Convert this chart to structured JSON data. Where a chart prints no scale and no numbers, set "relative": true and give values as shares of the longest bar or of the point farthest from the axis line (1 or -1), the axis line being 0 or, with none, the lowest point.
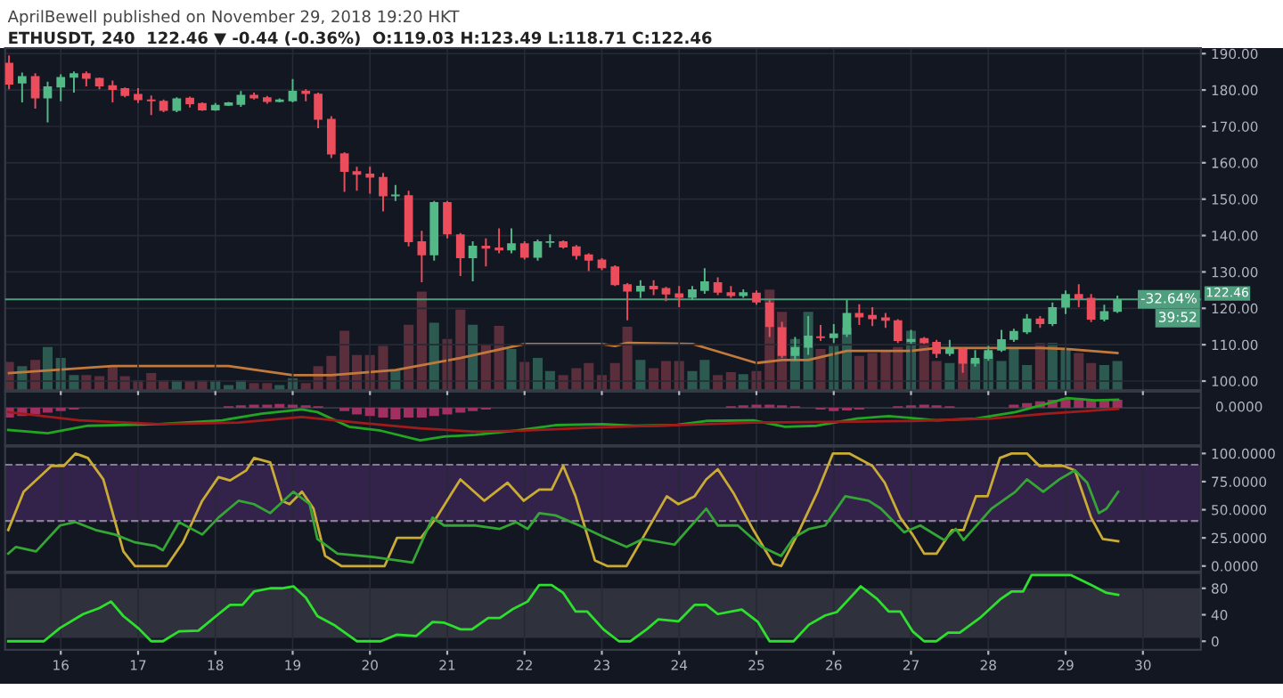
{
  "chart_data": [
    {
      "type": "candlestick",
      "subtitle": "AprilBewell published on November 29, 2018 19:20 HKT",
      "title": "ETHUSDT, 240  122.46 ▼ -0.44 (-0.36%)  O:119.03 H:123.49 L:118.71 C:122.46",
      "x": [
        15.33,
        15.5,
        15.67,
        15.83,
        16,
        16.17,
        16.33,
        16.5,
        16.67,
        16.83,
        17,
        17.17,
        17.33,
        17.5,
        17.67,
        17.83,
        18,
        18.17,
        18.33,
        18.5,
        18.67,
        18.83,
        19,
        19.17,
        19.33,
        19.5,
        19.67,
        19.83,
        20,
        20.17,
        20.33,
        20.5,
        20.67,
        20.83,
        21,
        21.17,
        21.33,
        21.5,
        21.67,
        21.83,
        22,
        22.17,
        22.33,
        22.5,
        22.67,
        22.83,
        23,
        23.17,
        23.33,
        23.5,
        23.67,
        23.83,
        24,
        24.17,
        24.33,
        24.5,
        24.67,
        24.83,
        25,
        25.17,
        25.33,
        25.5,
        25.67,
        25.83,
        26,
        26.17,
        26.33,
        26.5,
        26.67,
        26.83,
        27,
        27.17,
        27.33,
        27.5,
        27.67,
        27.83,
        28,
        28.17,
        28.33,
        28.5,
        28.67,
        28.83,
        29,
        29.17,
        29.33,
        29.5,
        29.67
      ],
      "ohlc": [
        [
          187.5,
          189.5,
          180.2,
          181.5
        ],
        [
          181.8,
          184.8,
          176.6,
          183.8
        ],
        [
          183.8,
          184.6,
          174.9,
          177.7
        ],
        [
          177.7,
          182.3,
          171.1,
          181.0
        ],
        [
          180.7,
          184.3,
          176.9,
          183.6
        ],
        [
          183.4,
          185.1,
          179.3,
          184.6
        ],
        [
          184.6,
          185.1,
          181.0,
          183.1
        ],
        [
          183.3,
          183.4,
          180.2,
          181.0
        ],
        [
          181.3,
          182.6,
          176.6,
          180.0
        ],
        [
          180.5,
          180.7,
          178.0,
          178.4
        ],
        [
          178.9,
          180.5,
          176.4,
          177.2
        ],
        [
          177.4,
          178.5,
          173.1,
          176.9
        ],
        [
          177.0,
          177.4,
          173.9,
          174.3
        ],
        [
          174.3,
          178.0,
          173.9,
          177.7
        ],
        [
          177.9,
          178.2,
          175.2,
          176.1
        ],
        [
          176.4,
          176.6,
          174.3,
          174.4
        ],
        [
          174.4,
          176.4,
          174.3,
          175.9
        ],
        [
          175.7,
          176.7,
          175.6,
          176.6
        ],
        [
          175.9,
          179.7,
          175.4,
          178.7
        ],
        [
          178.7,
          179.3,
          177.4,
          177.7
        ],
        [
          178.0,
          178.4,
          176.2,
          176.7
        ],
        [
          176.7,
          177.7,
          176.6,
          177.4
        ],
        [
          176.9,
          183.0,
          176.6,
          179.8
        ],
        [
          179.8,
          180.2,
          176.9,
          178.9
        ],
        [
          179.0,
          179.3,
          169.5,
          171.8
        ],
        [
          172.1,
          172.8,
          161.3,
          162.3
        ],
        [
          162.6,
          162.9,
          152.0,
          157.5
        ],
        [
          157.7,
          158.9,
          152.3,
          156.7
        ],
        [
          157.0,
          158.9,
          151.5,
          155.9
        ],
        [
          156.1,
          157.2,
          146.6,
          150.8
        ],
        [
          150.8,
          153.9,
          149.5,
          151.3
        ],
        [
          151.1,
          152.3,
          137.0,
          138.2
        ],
        [
          138.4,
          141.3,
          127.2,
          134.6
        ],
        [
          134.6,
          149.5,
          133.1,
          149.2
        ],
        [
          149.2,
          149.5,
          139.2,
          140.3
        ],
        [
          140.3,
          140.7,
          128.9,
          133.8
        ],
        [
          133.8,
          138.4,
          127.4,
          137.2
        ],
        [
          137.2,
          139.2,
          131.5,
          136.4
        ],
        [
          136.7,
          142.0,
          135.1,
          135.9
        ],
        [
          135.9,
          142.0,
          135.1,
          137.9
        ],
        [
          137.9,
          138.4,
          133.4,
          133.9
        ],
        [
          133.9,
          138.9,
          133.1,
          138.4
        ],
        [
          138.0,
          140.3,
          136.7,
          138.4
        ],
        [
          138.4,
          138.7,
          136.4,
          136.7
        ],
        [
          137.0,
          137.4,
          133.4,
          134.4
        ],
        [
          134.8,
          135.1,
          130.2,
          133.1
        ],
        [
          133.4,
          133.8,
          130.5,
          131.0
        ],
        [
          131.5,
          131.8,
          126.1,
          126.4
        ],
        [
          126.6,
          126.9,
          116.7,
          124.6
        ],
        [
          124.6,
          127.7,
          122.8,
          126.2
        ],
        [
          126.2,
          127.7,
          123.6,
          125.2
        ],
        [
          125.6,
          125.9,
          122.0,
          123.8
        ],
        [
          124.1,
          126.1,
          120.3,
          122.9
        ],
        [
          122.9,
          126.1,
          122.3,
          125.2
        ],
        [
          124.8,
          131.0,
          124.0,
          127.4
        ],
        [
          127.2,
          128.5,
          123.6,
          124.3
        ],
        [
          124.4,
          126.1,
          122.9,
          123.4
        ],
        [
          123.4,
          125.2,
          122.9,
          124.4
        ],
        [
          124.3,
          124.9,
          121.0,
          121.6
        ],
        [
          121.6,
          122.3,
          112.1,
          114.9
        ],
        [
          114.8,
          116.3,
          106.4,
          106.9
        ],
        [
          106.9,
          112.1,
          105.6,
          109.3
        ],
        [
          109.2,
          117.9,
          107.2,
          112.5
        ],
        [
          112.3,
          115.4,
          111.0,
          111.8
        ],
        [
          111.8,
          115.7,
          110.5,
          113.1
        ],
        [
          112.8,
          122.3,
          112.1,
          118.7
        ],
        [
          118.7,
          121.1,
          115.4,
          117.5
        ],
        [
          118.2,
          120.3,
          115.1,
          117.0
        ],
        [
          117.5,
          118.7,
          114.6,
          116.6
        ],
        [
          116.7,
          117.0,
          110.5,
          111.0
        ],
        [
          110.8,
          114.1,
          110.2,
          111.6
        ],
        [
          111.8,
          112.1,
          110.2,
          110.5
        ],
        [
          110.8,
          111.3,
          106.4,
          107.5
        ],
        [
          107.5,
          111.3,
          106.9,
          109.2
        ],
        [
          108.9,
          109.2,
          102.3,
          104.8
        ],
        [
          104.8,
          108.5,
          104.0,
          106.4
        ],
        [
          106.1,
          109.7,
          105.6,
          108.5
        ],
        [
          108.4,
          114.1,
          108.0,
          111.5
        ],
        [
          111.3,
          114.4,
          110.8,
          113.8
        ],
        [
          113.4,
          118.4,
          112.9,
          117.2
        ],
        [
          117.2,
          117.9,
          114.6,
          115.7
        ],
        [
          115.7,
          121.6,
          115.1,
          120.3
        ],
        [
          120.2,
          124.9,
          118.4,
          123.9
        ],
        [
          123.9,
          126.6,
          120.3,
          122.5
        ],
        [
          122.9,
          123.9,
          116.2,
          116.9
        ],
        [
          116.9,
          121.0,
          116.4,
          119.2
        ],
        [
          119.03,
          123.49,
          118.71,
          122.46
        ]
      ],
      "colors": [
        "#eb4d5c",
        "#53b987",
        "#eb4d5c",
        "#53b987",
        "#53b987",
        "#53b987",
        "#eb4d5c",
        "#eb4d5c",
        "#eb4d5c",
        "#eb4d5c",
        "#eb4d5c",
        "#eb4d5c",
        "#eb4d5c",
        "#53b987",
        "#eb4d5c",
        "#eb4d5c",
        "#53b987",
        "#53b987",
        "#53b987",
        "#eb4d5c",
        "#eb4d5c",
        "#53b987",
        "#53b987",
        "#eb4d5c",
        "#eb4d5c",
        "#eb4d5c",
        "#eb4d5c",
        "#eb4d5c",
        "#eb4d5c",
        "#eb4d5c",
        "#53b987",
        "#eb4d5c",
        "#eb4d5c",
        "#53b987",
        "#eb4d5c",
        "#eb4d5c",
        "#53b987",
        "#eb4d5c",
        "#eb4d5c",
        "#53b987",
        "#eb4d5c",
        "#53b987",
        "#53b987",
        "#eb4d5c",
        "#eb4d5c",
        "#eb4d5c",
        "#eb4d5c",
        "#eb4d5c",
        "#eb4d5c",
        "#53b987",
        "#eb4d5c",
        "#eb4d5c",
        "#eb4d5c",
        "#53b987",
        "#53b987",
        "#eb4d5c",
        "#eb4d5c",
        "#53b987",
        "#eb4d5c",
        "#eb4d5c",
        "#eb4d5c",
        "#53b987",
        "#53b987",
        "#eb4d5c",
        "#53b987",
        "#53b987",
        "#eb4d5c",
        "#eb4d5c",
        "#eb4d5c",
        "#eb4d5c",
        "#53b987",
        "#eb4d5c",
        "#eb4d5c",
        "#53b987",
        "#eb4d5c",
        "#53b987",
        "#53b987",
        "#53b987",
        "#53b987",
        "#53b987",
        "#eb4d5c",
        "#53b987",
        "#53b987",
        "#eb4d5c",
        "#eb4d5c",
        "#53b987",
        "#53b987"
      ],
      "xlim": [
        15.28,
        30.75
      ],
      "xticks": [
        16,
        17,
        18,
        19,
        20,
        21,
        22,
        23,
        24,
        25,
        26,
        27,
        28,
        29,
        30
      ],
      "ylim": [
        97.5,
        191.5
      ],
      "yticks": [
        {
          "value": 100,
          "label": "100.00"
        },
        {
          "value": 110,
          "label": "110.00"
        },
        {
          "value": 120,
          "label": "120.00"
        },
        {
          "value": 130,
          "label": "130.00"
        },
        {
          "value": 140,
          "label": "140.00"
        },
        {
          "value": 150,
          "label": "150.00"
        },
        {
          "value": 160,
          "label": "160.00"
        },
        {
          "value": 170,
          "label": "170.00"
        },
        {
          "value": 180,
          "label": "180.00"
        },
        {
          "value": 190,
          "label": "190.00"
        }
      ],
      "ref_lines": [
        {
          "axis": "y",
          "value": 122.46,
          "label": "122.46",
          "color": "#4f9f7f"
        }
      ],
      "annotations": [
        "-32.64%",
        "39:52"
      ],
      "grid": true,
      "tick_labels": "y"
    },
    {
      "type": "bar",
      "relative": true,
      "x": [
        15.33,
        15.5,
        15.67,
        15.83,
        16,
        16.17,
        16.33,
        16.5,
        16.67,
        16.83,
        17,
        17.17,
        17.33,
        17.5,
        17.67,
        17.83,
        18,
        18.17,
        18.33,
        18.5,
        18.67,
        18.83,
        19,
        19.17,
        19.33,
        19.5,
        19.67,
        19.83,
        20,
        20.17,
        20.33,
        20.5,
        20.67,
        20.83,
        21,
        21.17,
        21.33,
        21.5,
        21.67,
        21.83,
        22,
        22.17,
        22.33,
        22.5,
        22.67,
        22.83,
        23,
        23.17,
        23.33,
        23.5,
        23.67,
        23.83,
        24,
        24.17,
        24.33,
        24.5,
        24.67,
        24.83,
        25,
        25.17,
        25.33,
        25.5,
        25.67,
        25.83,
        26,
        26.17,
        26.33,
        26.5,
        26.67,
        26.83,
        27,
        27.17,
        27.33,
        27.5,
        27.67,
        27.83,
        28,
        28.17,
        28.33,
        28.5,
        28.67,
        28.83,
        29,
        29.17,
        29.33,
        29.5,
        29.67
      ],
      "values": [
        0.28,
        0.24,
        0.3,
        0.43,
        0.32,
        0.15,
        0.15,
        0.14,
        0.24,
        0.14,
        0.1,
        0.17,
        0.1,
        0.1,
        0.09,
        0.1,
        0.1,
        0.05,
        0.1,
        0.07,
        0.07,
        0.05,
        0.12,
        0.07,
        0.24,
        0.34,
        0.59,
        0.35,
        0.35,
        0.44,
        0.2,
        0.65,
        0.98,
        0.67,
        0.51,
        0.8,
        0.65,
        0.45,
        0.64,
        0.41,
        0.28,
        0.32,
        0.19,
        0.15,
        0.22,
        0.27,
        0.15,
        0.27,
        0.63,
        0.3,
        0.22,
        0.29,
        0.29,
        0.19,
        0.3,
        0.15,
        0.18,
        0.16,
        0.19,
        1,
        0.78,
        0.51,
        0.78,
        0.41,
        0.44,
        0.62,
        0.34,
        0.37,
        0.39,
        0.43,
        0.59,
        0.51,
        0.29,
        0.27,
        0.41,
        0.3,
        0.37,
        0.29,
        0.43,
        0.25,
        0.47,
        0.47,
        0.41,
        0.37,
        0.27,
        0.25,
        0.29
      ],
      "colors": [
        "#5b2e3c",
        "#2d5a50",
        "#5b2e3c",
        "#2d5a50",
        "#2d5a50",
        "#2d5a50",
        "#5b2e3c",
        "#5b2e3c",
        "#5b2e3c",
        "#5b2e3c",
        "#5b2e3c",
        "#5b2e3c",
        "#5b2e3c",
        "#2d5a50",
        "#5b2e3c",
        "#5b2e3c",
        "#2d5a50",
        "#2d5a50",
        "#2d5a50",
        "#5b2e3c",
        "#5b2e3c",
        "#2d5a50",
        "#2d5a50",
        "#5b2e3c",
        "#5b2e3c",
        "#5b2e3c",
        "#5b2e3c",
        "#5b2e3c",
        "#5b2e3c",
        "#5b2e3c",
        "#2d5a50",
        "#5b2e3c",
        "#5b2e3c",
        "#2d5a50",
        "#5b2e3c",
        "#5b2e3c",
        "#2d5a50",
        "#5b2e3c",
        "#5b2e3c",
        "#2d5a50",
        "#5b2e3c",
        "#2d5a50",
        "#2d5a50",
        "#5b2e3c",
        "#5b2e3c",
        "#5b2e3c",
        "#5b2e3c",
        "#5b2e3c",
        "#5b2e3c",
        "#2d5a50",
        "#5b2e3c",
        "#5b2e3c",
        "#5b2e3c",
        "#2d5a50",
        "#2d5a50",
        "#5b2e3c",
        "#5b2e3c",
        "#2d5a50",
        "#5b2e3c",
        "#5b2e3c",
        "#5b2e3c",
        "#2d5a50",
        "#2d5a50",
        "#5b2e3c",
        "#2d5a50",
        "#2d5a50",
        "#5b2e3c",
        "#5b2e3c",
        "#5b2e3c",
        "#5b2e3c",
        "#2d5a50",
        "#5b2e3c",
        "#5b2e3c",
        "#2d5a50",
        "#5b2e3c",
        "#2d5a50",
        "#2d5a50",
        "#2d5a50",
        "#2d5a50",
        "#2d5a50",
        "#5b2e3c",
        "#2d5a50",
        "#2d5a50",
        "#5b2e3c",
        "#5b2e3c",
        "#2d5a50",
        "#2d5a50"
      ],
      "series": [
        {
          "type": "line",
          "color": "#c27a3c",
          "x": [
            15.33,
            16.67,
            18.17,
            19.0,
            19.5,
            20.33,
            21.17,
            22.0,
            23.0,
            23.17,
            23.33,
            24.17,
            25.0,
            25.33,
            25.67,
            26.17,
            27.0,
            27.33,
            28.67,
            29.0,
            29.67
          ],
          "values": [
            0.17,
            0.24,
            0.24,
            0.15,
            0.15,
            0.2,
            0.32,
            0.46,
            0.46,
            0.44,
            0.47,
            0.46,
            0.27,
            0.3,
            0.3,
            0.39,
            0.39,
            0.42,
            0.42,
            0.41,
            0.37
          ]
        }
      ],
      "xlim": [
        15.28,
        30.75
      ],
      "tick_labels": false
    },
    {
      "type": "line",
      "relative": true,
      "xlim": [
        15.28,
        30.75
      ],
      "xticks": [
        16,
        17,
        18,
        19,
        20,
        21,
        22,
        23,
        24,
        25,
        26,
        27,
        28,
        29,
        30
      ],
      "grid": "x",
      "tick_labels": false,
      "annotations": [
        "0.0000"
      ],
      "series": [
        {
          "type": "bar",
          "color": "#a0305f",
          "x": [
            15.33,
            15.5,
            15.67,
            15.83,
            16,
            16.17,
            18.17,
            18.33,
            18.5,
            18.67,
            18.83,
            19,
            19.17,
            19.33,
            19.67,
            19.83,
            20,
            20.17,
            20.33,
            20.5,
            20.67,
            20.83,
            21,
            21.17,
            21.33,
            21.5,
            24.67,
            24.83,
            25,
            25.17,
            25.33,
            25.5,
            25.83,
            26,
            26.17,
            26.33,
            26.83,
            27,
            27.17,
            27.33,
            27.5,
            28.33,
            28.5,
            28.67,
            28.83,
            29,
            29.17,
            29.33,
            29.5,
            29.67
          ],
          "values": [
            -0.3,
            -0.25,
            -0.2,
            -0.15,
            -0.1,
            -0.05,
            0.05,
            0.08,
            0.1,
            0.1,
            0.12,
            0.1,
            0.08,
            0.05,
            -0.1,
            -0.2,
            -0.25,
            -0.3,
            -0.35,
            -0.3,
            -0.3,
            -0.25,
            -0.2,
            -0.15,
            -0.1,
            -0.05,
            0.05,
            0.08,
            0.1,
            0.1,
            0.08,
            0.05,
            -0.05,
            -0.1,
            -0.08,
            -0.05,
            0.05,
            0.08,
            0.1,
            0.08,
            0.05,
            0.1,
            0.15,
            0.2,
            0.25,
            0.3,
            0.3,
            0.25,
            0.25,
            0.25
          ]
        },
        {
          "color": "#22a522",
          "x": [
            15.32,
            15.83,
            16.35,
            17.27,
            18.09,
            18.6,
            19.12,
            19.32,
            19.73,
            20.14,
            20.65,
            20.96,
            21.37,
            21.89,
            22.4,
            23.01,
            23.42,
            23.94,
            24.35,
            24.96,
            25.37,
            25.78,
            26.3,
            26.71,
            27.33,
            27.84,
            28.35,
            28.76,
            29.02,
            29.38,
            29.68
          ],
          "values": [
            -0.68,
            -0.78,
            -0.55,
            -0.5,
            -0.38,
            -0.18,
            -0.05,
            -0.13,
            -0.58,
            -0.7,
            -1,
            -0.88,
            -0.83,
            -0.7,
            -0.53,
            -0.5,
            -0.55,
            -0.53,
            -0.4,
            -0.38,
            -0.58,
            -0.55,
            -0.33,
            -0.25,
            -0.38,
            -0.33,
            -0.13,
            0.13,
            0.3,
            0.23,
            0.25
          ]
        },
        {
          "color": "#a01c1c",
          "x": [
            15.32,
            16.24,
            17.27,
            18.3,
            19.12,
            19.83,
            20.65,
            21.37,
            21.99,
            22.91,
            23.94,
            24.96,
            25.99,
            27.02,
            28.04,
            28.76,
            29.68
          ],
          "values": [
            -0.13,
            -0.38,
            -0.5,
            -0.45,
            -0.28,
            -0.45,
            -0.63,
            -0.73,
            -0.7,
            -0.6,
            -0.53,
            -0.45,
            -0.43,
            -0.4,
            -0.33,
            -0.18,
            -0.03
          ]
        }
      ]
    },
    {
      "type": "line",
      "xlim": [
        15.28,
        30.75
      ],
      "xticks": [
        16,
        17,
        18,
        19,
        20,
        21,
        22,
        23,
        24,
        25,
        26,
        27,
        28,
        29,
        30
      ],
      "ylim": [
        -5,
        106
      ],
      "yticks": [
        {
          "value": 0,
          "label": "0.0000"
        },
        {
          "value": 25,
          "label": "25.0000"
        },
        {
          "value": 50,
          "label": "50.0000"
        },
        {
          "value": 75,
          "label": "75.0000"
        },
        {
          "value": 100,
          "label": "100.0000"
        }
      ],
      "bands": [
        {
          "axis": "y",
          "from": 40,
          "to": 90,
          "color": "#33224a"
        }
      ],
      "ref_lines": [
        {
          "axis": "y",
          "value": 90,
          "color": "#8a7a9a",
          "line_style": "dashed"
        },
        {
          "axis": "y",
          "value": 40,
          "color": "#8a7a9a",
          "line_style": "dashed"
        }
      ],
      "grid": "x",
      "tick_labels": "y",
      "series": [
        {
          "color": "#c9ab35",
          "x": [
            15.32,
            15.52,
            15.88,
            16.04,
            16.19,
            16.35,
            16.55,
            16.81,
            16.96,
            17.37,
            17.58,
            17.83,
            18.04,
            18.19,
            18.4,
            18.5,
            18.71,
            18.86,
            18.96,
            19.12,
            19.27,
            19.42,
            19.63,
            20.19,
            20.35,
            20.66,
            20.86,
            21.17,
            21.48,
            21.78,
            21.99,
            22.19,
            22.35,
            22.5,
            22.66,
            22.91,
            23.07,
            23.32,
            23.53,
            23.84,
            23.99,
            24.2,
            24.35,
            24.5,
            24.71,
            24.96,
            25.22,
            25.32,
            25.53,
            25.79,
            25.99,
            26.2,
            26.5,
            26.66,
            26.86,
            27.02,
            27.17,
            27.33,
            27.53,
            27.68,
            27.84,
            27.99,
            28.15,
            28.3,
            28.5,
            28.66,
            28.97,
            29.12,
            29.33,
            29.48,
            29.68
          ],
          "values": [
            32,
            66,
            89,
            89,
            100,
            96,
            77,
            13,
            0,
            0,
            21,
            58,
            79,
            76,
            85,
            96,
            92,
            58,
            55,
            66,
            51,
            9,
            0,
            0,
            25,
            25,
            43,
            77,
            58,
            74,
            58,
            68,
            68,
            89,
            62,
            5,
            0,
            0,
            25,
            62,
            55,
            62,
            77,
            86,
            64,
            32,
            2,
            0,
            28,
            66,
            100,
            100,
            89,
            74,
            43,
            28,
            11,
            11,
            32,
            32,
            62,
            62,
            96,
            100,
            100,
            89,
            89,
            85,
            43,
            24,
            22
          ]
        },
        {
          "color": "#35a535",
          "x": [
            15.32,
            15.42,
            15.68,
            15.99,
            16.19,
            16.45,
            16.7,
            16.96,
            17.22,
            17.32,
            17.53,
            17.83,
            18.04,
            18.3,
            18.5,
            18.71,
            19.01,
            19.22,
            19.32,
            19.58,
            20.04,
            20.35,
            20.55,
            20.81,
            20.96,
            21.37,
            21.68,
            21.89,
            22.04,
            22.19,
            22.4,
            22.71,
            23.02,
            23.32,
            23.53,
            23.94,
            24.35,
            24.5,
            24.76,
            25.07,
            25.32,
            25.48,
            25.68,
            25.89,
            26.15,
            26.45,
            26.61,
            26.91,
            27.12,
            27.43,
            27.58,
            27.68,
            28.04,
            28.35,
            28.5,
            28.71,
            28.92,
            29.12,
            29.28,
            29.43,
            29.53,
            29.68
          ],
          "values": [
            11,
            17,
            13,
            36,
            39,
            32,
            28,
            21,
            18,
            14,
            39,
            28,
            43,
            58,
            55,
            47,
            66,
            55,
            24,
            11,
            8,
            5,
            3,
            43,
            36,
            36,
            33,
            39,
            33,
            47,
            45,
            36,
            26,
            17,
            24,
            19,
            51,
            36,
            36,
            17,
            9,
            25,
            33,
            36,
            62,
            58,
            51,
            30,
            36,
            23,
            33,
            23,
            51,
            66,
            77,
            66,
            77,
            85,
            74,
            47,
            51,
            66
          ]
        }
      ]
    },
    {
      "type": "line",
      "xlim": [
        15.28,
        30.75
      ],
      "xticks": [
        16,
        17,
        18,
        19,
        20,
        21,
        22,
        23,
        24,
        25,
        26,
        27,
        28,
        29,
        30
      ],
      "ylim": [
        -13,
        103
      ],
      "yticks": [
        0,
        40,
        80
      ],
      "bands": [
        {
          "axis": "y",
          "from": 5,
          "to": 80,
          "color": "#2f323c"
        }
      ],
      "grid": "x",
      "series": [
        {
          "color": "#2ee02e",
          "x": [
            15.32,
            15.78,
            15.99,
            16.29,
            16.5,
            16.65,
            16.81,
            17.01,
            17.17,
            17.32,
            17.53,
            17.78,
            18.04,
            18.19,
            18.35,
            18.5,
            18.71,
            18.86,
            19.01,
            19.17,
            19.32,
            19.53,
            19.83,
            20.14,
            20.35,
            20.6,
            20.81,
            20.96,
            21.17,
            21.32,
            21.53,
            21.68,
            21.84,
            22.04,
            22.19,
            22.35,
            22.5,
            22.66,
            22.81,
            23.02,
            23.22,
            23.37,
            23.58,
            23.73,
            23.99,
            24.2,
            24.35,
            24.5,
            24.81,
            25.02,
            25.17,
            25.48,
            25.68,
            25.89,
            26.04,
            26.2,
            26.35,
            26.56,
            26.71,
            26.86,
            27.02,
            27.17,
            27.33,
            27.48,
            27.63,
            27.89,
            28.15,
            28.3,
            28.45,
            28.56,
            29.07,
            29.33,
            29.53,
            29.68
          ],
          "values": [
            0,
            0,
            20,
            41,
            50,
            60,
            38,
            19,
            0,
            0,
            15,
            16,
            41,
            55,
            55,
            75,
            80,
            80,
            83,
            66,
            38,
            25,
            0,
            0,
            10,
            8,
            29,
            28,
            18,
            18,
            35,
            35,
            48,
            60,
            85,
            85,
            73,
            45,
            45,
            18,
            0,
            0,
            18,
            33,
            30,
            55,
            55,
            41,
            48,
            29,
            0,
            0,
            25,
            39,
            44,
            64,
            83,
            64,
            45,
            45,
            15,
            0,
            0,
            13,
            13,
            35,
            63,
            75,
            75,
            100,
            100,
            85,
            73,
            70
          ]
        }
      ]
    }
  ]
}
